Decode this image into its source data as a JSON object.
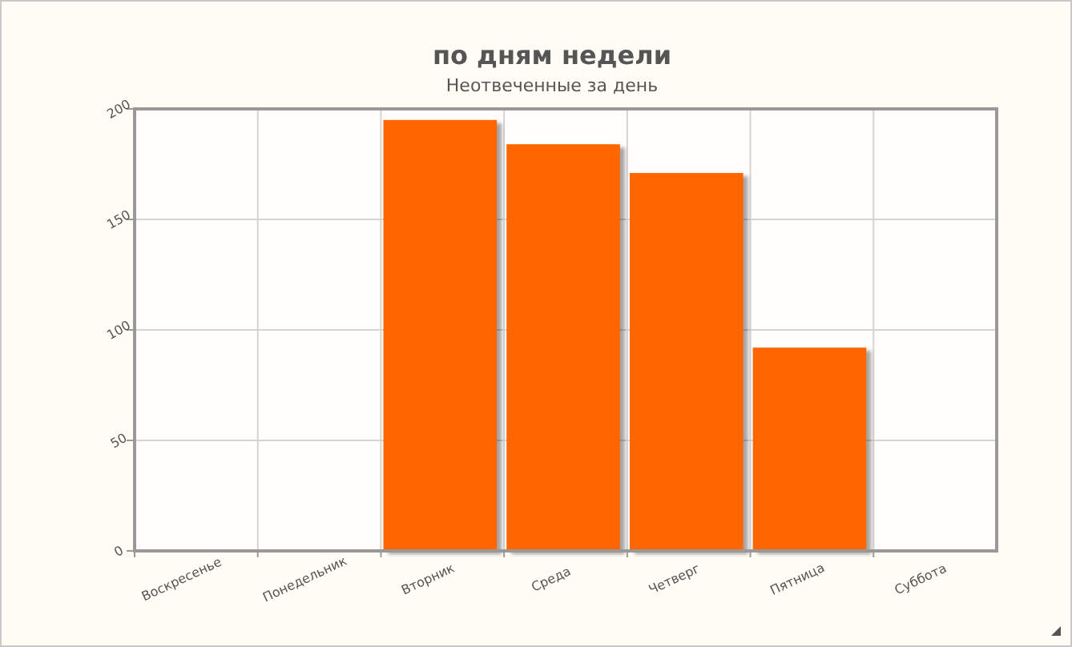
{
  "chart_data": {
    "type": "bar",
    "title": "по дням недели",
    "subtitle": "Неотвеченные за день",
    "categories": [
      "Воскресенье",
      "Понедельник",
      "Вторник",
      "Среда",
      "Четверг",
      "Пятница",
      "Суббота"
    ],
    "values": [
      0,
      0,
      195,
      184,
      171,
      92,
      0
    ],
    "color": "#ff6600",
    "ylim": [
      0,
      200
    ],
    "yticks": [
      0,
      50,
      100,
      150,
      200
    ],
    "grid": true
  }
}
